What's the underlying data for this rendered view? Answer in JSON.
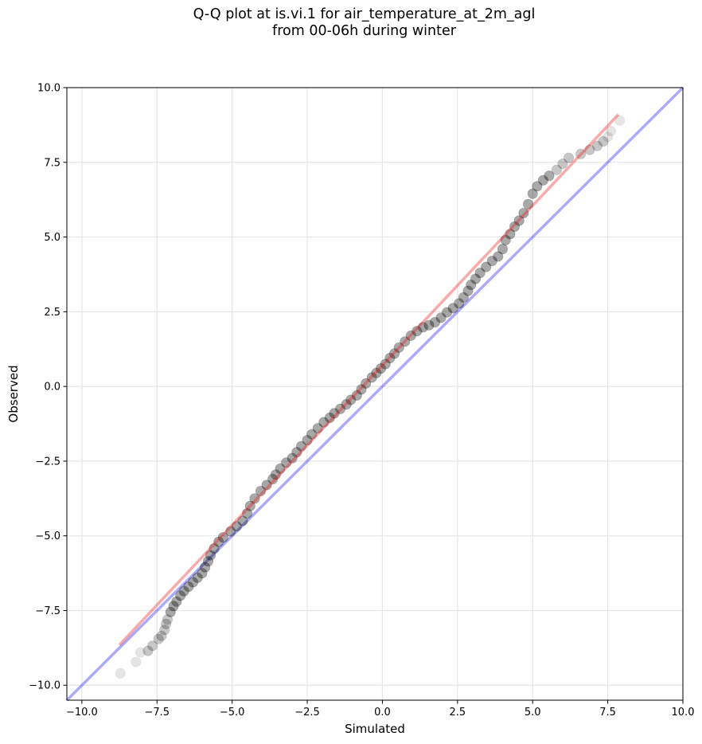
{
  "chart_data": {
    "type": "scatter",
    "title": [
      "Q-Q plot at is.vi.1 for air_temperature_at_2m_agl",
      "from 00-06h during winter"
    ],
    "xlabel": "Simulated",
    "ylabel": "Observed",
    "xlim": [
      -10.5,
      10.0
    ],
    "ylim": [
      -10.5,
      10.0
    ],
    "xticks": [
      -10.0,
      -7.5,
      -5.0,
      -2.5,
      0.0,
      2.5,
      5.0,
      7.5,
      10.0
    ],
    "yticks": [
      -10.0,
      -7.5,
      -5.0,
      -2.5,
      0.0,
      2.5,
      5.0,
      7.5,
      10.0
    ],
    "tick_labels": [
      "−10.0",
      "−7.5",
      "−5.0",
      "−2.5",
      "0.0",
      "2.5",
      "5.0",
      "7.5",
      "10.0"
    ],
    "grid": true,
    "reference_line": {
      "x": [
        -10.5,
        10.0
      ],
      "y": [
        -10.5,
        10.0
      ],
      "color": "#0000ee"
    },
    "fit_line": {
      "x": [
        -8.75,
        7.85
      ],
      "y": [
        -8.65,
        9.1
      ],
      "color": "#ee2222"
    },
    "series": [
      {
        "points": [
          [
            -8.72,
            -9.6
          ],
          [
            -8.2,
            -9.22
          ],
          [
            -8.05,
            -8.9
          ],
          [
            -7.8,
            -8.85
          ],
          [
            -7.65,
            -8.68
          ],
          [
            -7.45,
            -8.45
          ],
          [
            -7.35,
            -8.35
          ],
          [
            -7.25,
            -8.15
          ],
          [
            -7.2,
            -7.95
          ],
          [
            -7.15,
            -7.8
          ],
          [
            -7.05,
            -7.55
          ],
          [
            -6.95,
            -7.35
          ],
          [
            -6.85,
            -7.2
          ],
          [
            -6.72,
            -7.0
          ],
          [
            -6.6,
            -6.85
          ],
          [
            -6.45,
            -6.7
          ],
          [
            -6.3,
            -6.55
          ],
          [
            -6.15,
            -6.4
          ],
          [
            -6.0,
            -6.25
          ],
          [
            -5.9,
            -6.05
          ],
          [
            -5.8,
            -5.85
          ],
          [
            -5.72,
            -5.65
          ],
          [
            -5.6,
            -5.42
          ],
          [
            -5.45,
            -5.2
          ],
          [
            -5.3,
            -5.05
          ],
          [
            -5.05,
            -4.85
          ],
          [
            -4.85,
            -4.68
          ],
          [
            -4.65,
            -4.5
          ],
          [
            -4.5,
            -4.25
          ],
          [
            -4.4,
            -4.0
          ],
          [
            -4.25,
            -3.75
          ],
          [
            -4.05,
            -3.5
          ],
          [
            -3.85,
            -3.3
          ],
          [
            -3.65,
            -3.1
          ],
          [
            -3.55,
            -2.95
          ],
          [
            -3.4,
            -2.75
          ],
          [
            -3.2,
            -2.55
          ],
          [
            -3.0,
            -2.4
          ],
          [
            -2.85,
            -2.2
          ],
          [
            -2.7,
            -2.0
          ],
          [
            -2.5,
            -1.8
          ],
          [
            -2.35,
            -1.6
          ],
          [
            -2.15,
            -1.4
          ],
          [
            -1.95,
            -1.2
          ],
          [
            -1.75,
            -1.05
          ],
          [
            -1.6,
            -0.9
          ],
          [
            -1.4,
            -0.75
          ],
          [
            -1.2,
            -0.6
          ],
          [
            -1.05,
            -0.45
          ],
          [
            -0.85,
            -0.3
          ],
          [
            -0.7,
            -0.1
          ],
          [
            -0.55,
            0.1
          ],
          [
            -0.35,
            0.3
          ],
          [
            -0.2,
            0.45
          ],
          [
            -0.05,
            0.6
          ],
          [
            0.1,
            0.75
          ],
          [
            0.25,
            0.95
          ],
          [
            0.4,
            1.1
          ],
          [
            0.55,
            1.3
          ],
          [
            0.75,
            1.5
          ],
          [
            0.95,
            1.7
          ],
          [
            1.15,
            1.85
          ],
          [
            1.35,
            1.98
          ],
          [
            1.55,
            2.05
          ],
          [
            1.75,
            2.15
          ],
          [
            1.95,
            2.3
          ],
          [
            2.15,
            2.48
          ],
          [
            2.35,
            2.62
          ],
          [
            2.55,
            2.78
          ],
          [
            2.7,
            2.98
          ],
          [
            2.85,
            3.2
          ],
          [
            2.95,
            3.4
          ],
          [
            3.1,
            3.6
          ],
          [
            3.25,
            3.8
          ],
          [
            3.45,
            4.0
          ],
          [
            3.65,
            4.2
          ],
          [
            3.85,
            4.35
          ],
          [
            4.0,
            4.6
          ],
          [
            4.1,
            4.9
          ],
          [
            4.25,
            5.1
          ],
          [
            4.4,
            5.35
          ],
          [
            4.55,
            5.55
          ],
          [
            4.7,
            5.8
          ],
          [
            4.85,
            6.1
          ],
          [
            5.0,
            6.45
          ],
          [
            5.15,
            6.7
          ],
          [
            5.35,
            6.9
          ],
          [
            5.55,
            7.05
          ],
          [
            5.8,
            7.25
          ],
          [
            6.0,
            7.45
          ],
          [
            6.2,
            7.65
          ],
          [
            6.6,
            7.78
          ],
          [
            6.9,
            7.92
          ],
          [
            7.15,
            8.05
          ],
          [
            7.35,
            8.2
          ],
          [
            7.5,
            8.35
          ],
          [
            7.6,
            8.55
          ],
          [
            7.9,
            8.9
          ]
        ]
      }
    ]
  }
}
